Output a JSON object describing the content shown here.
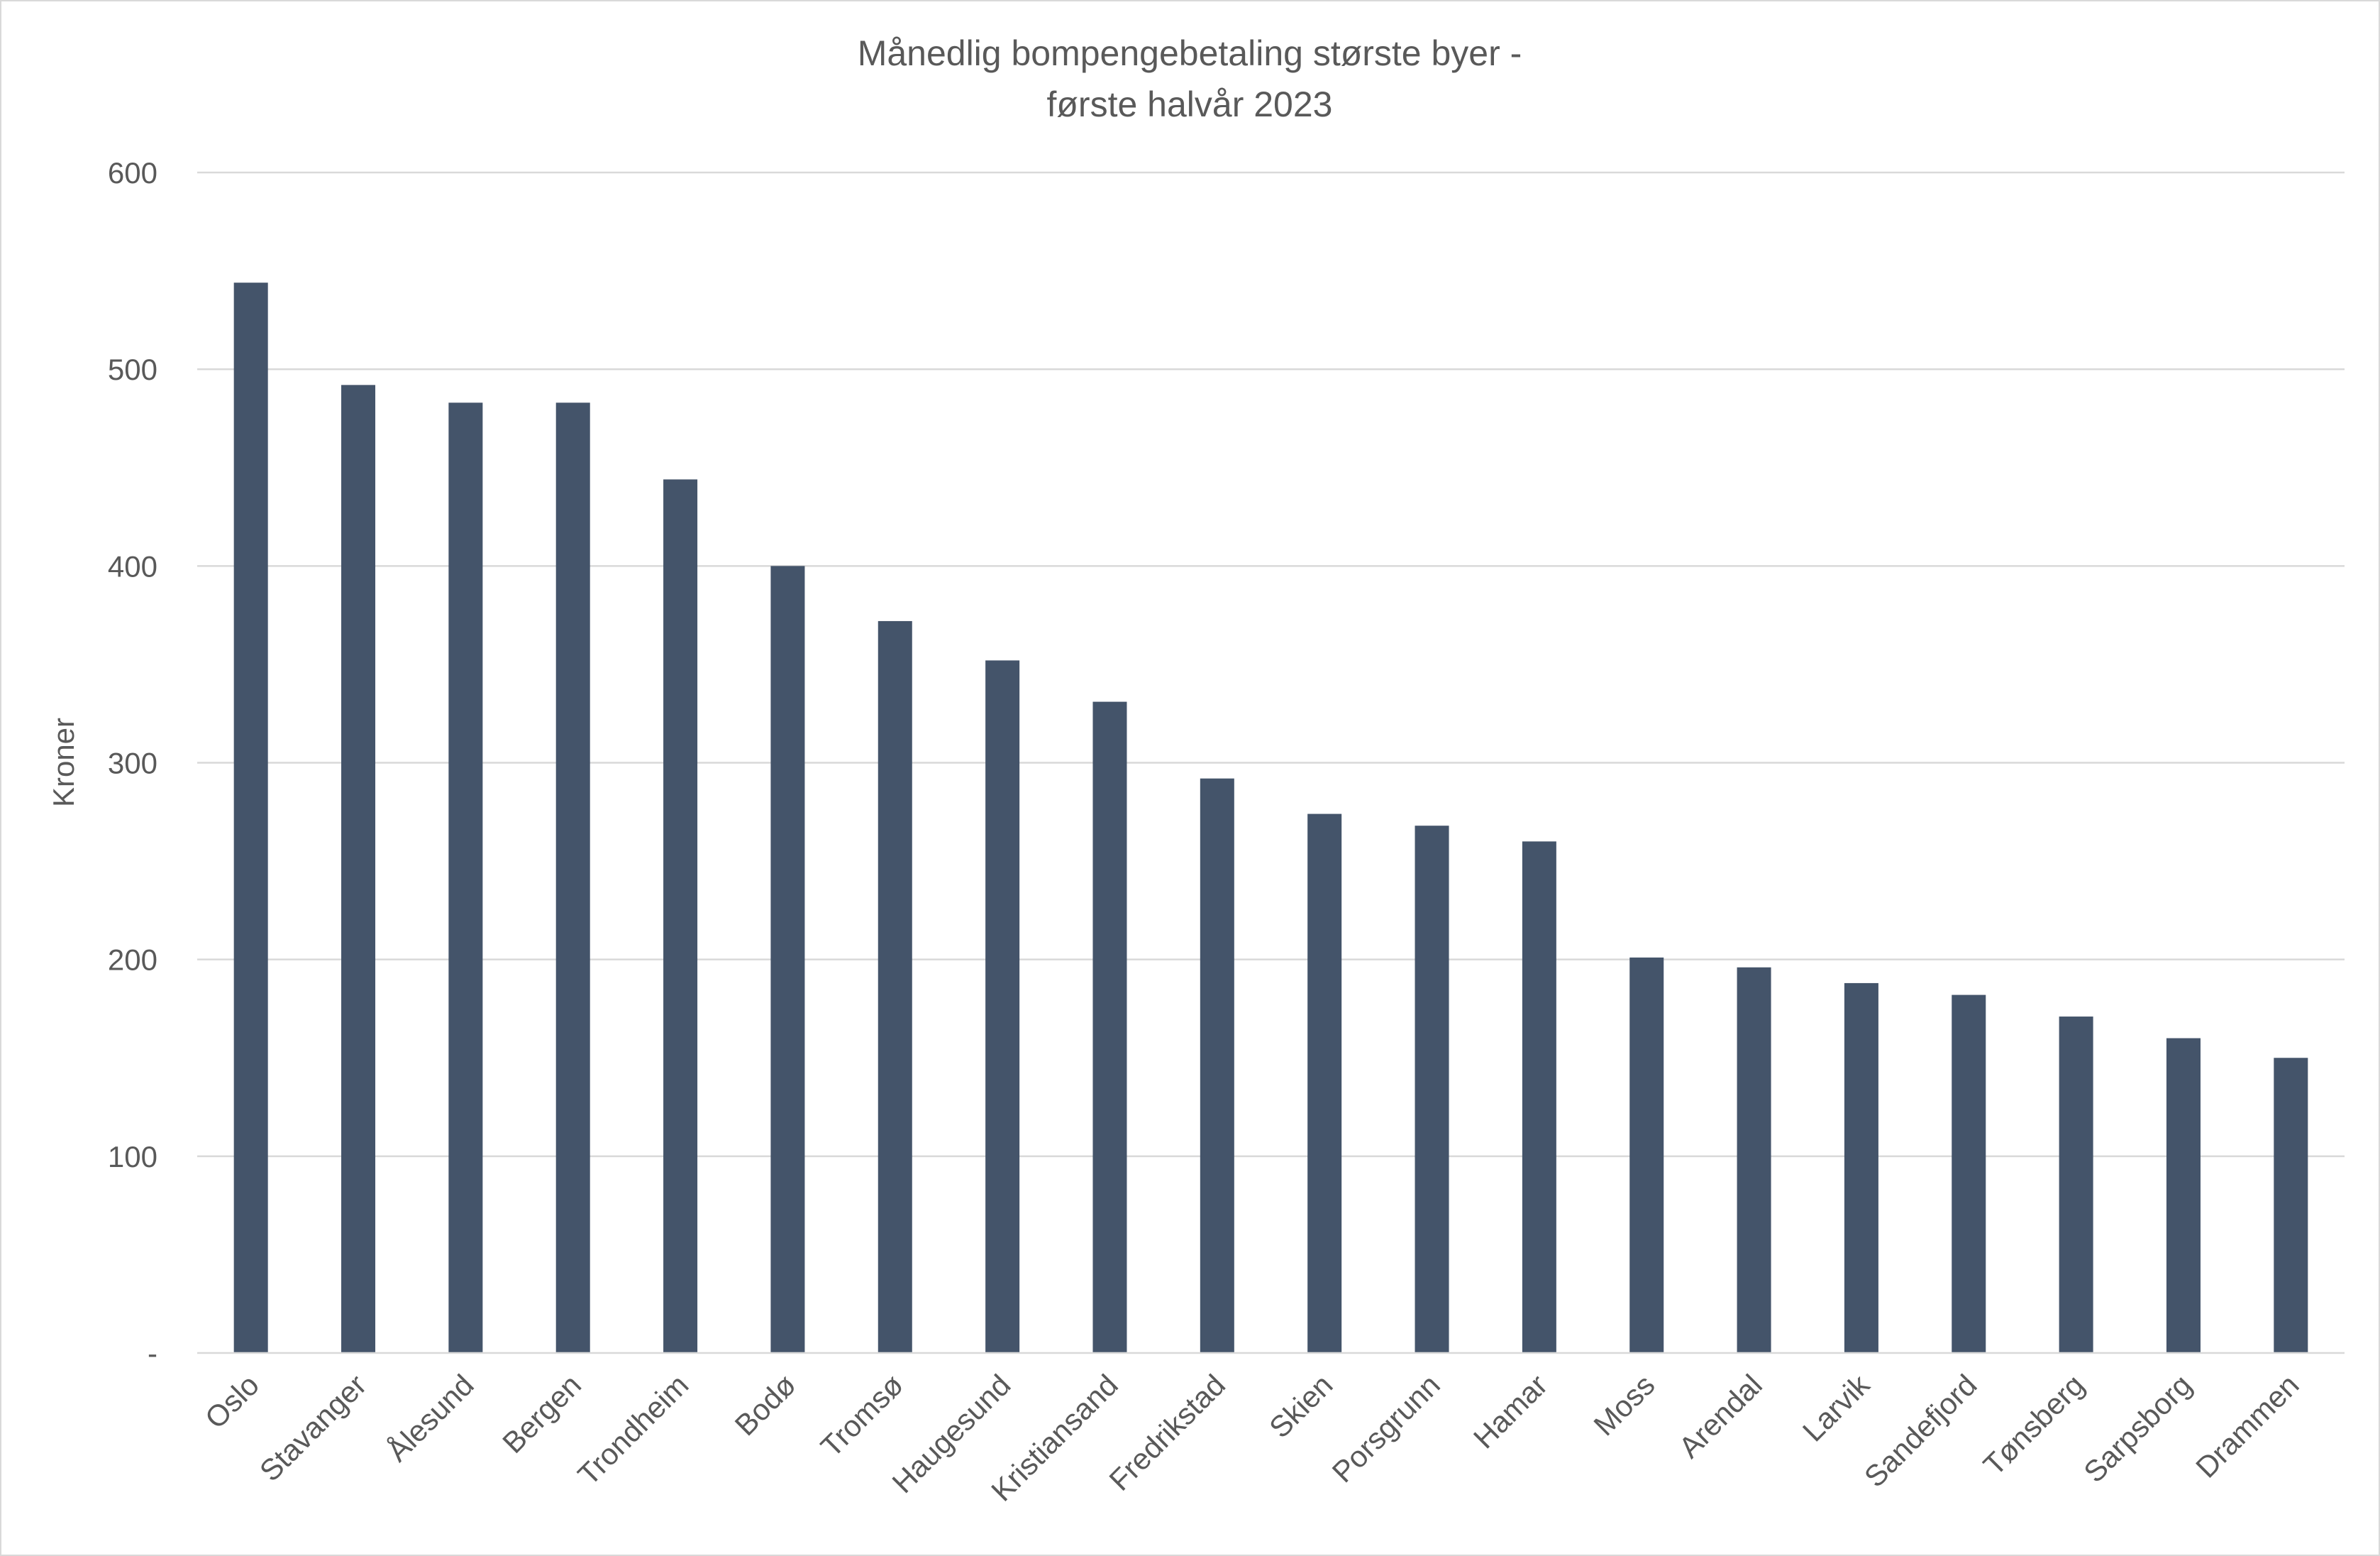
{
  "chart_data": {
    "type": "bar",
    "title_lines": [
      "Månedlig bompengebetaling største byer -",
      "første halvår 2023"
    ],
    "ylabel": "Kroner",
    "xlabel": "",
    "ylim": [
      0,
      600
    ],
    "yticks": [
      {
        "value": 0,
        "label": "-"
      },
      {
        "value": 100,
        "label": "100"
      },
      {
        "value": 200,
        "label": "200"
      },
      {
        "value": 300,
        "label": "300"
      },
      {
        "value": 400,
        "label": "400"
      },
      {
        "value": 500,
        "label": "500"
      },
      {
        "value": 600,
        "label": "600"
      }
    ],
    "grid": true,
    "legend": "none",
    "bar_color": "#44546a",
    "categories": [
      "Oslo",
      "Stavanger",
      "Ålesund",
      "Bergen",
      "Trondheim",
      "Bodø",
      "Tromsø",
      "Haugesund",
      "Kristiansand",
      "Fredrikstad",
      "Skien",
      "Porsgrunn",
      "Hamar",
      "Moss",
      "Arendal",
      "Larvik",
      "Sandefjord",
      "Tønsberg",
      "Sarpsborg",
      "Drammen"
    ],
    "values": [
      544,
      492,
      483,
      483,
      444,
      400,
      372,
      352,
      331,
      292,
      274,
      268,
      260,
      201,
      196,
      188,
      182,
      171,
      160,
      150
    ]
  }
}
